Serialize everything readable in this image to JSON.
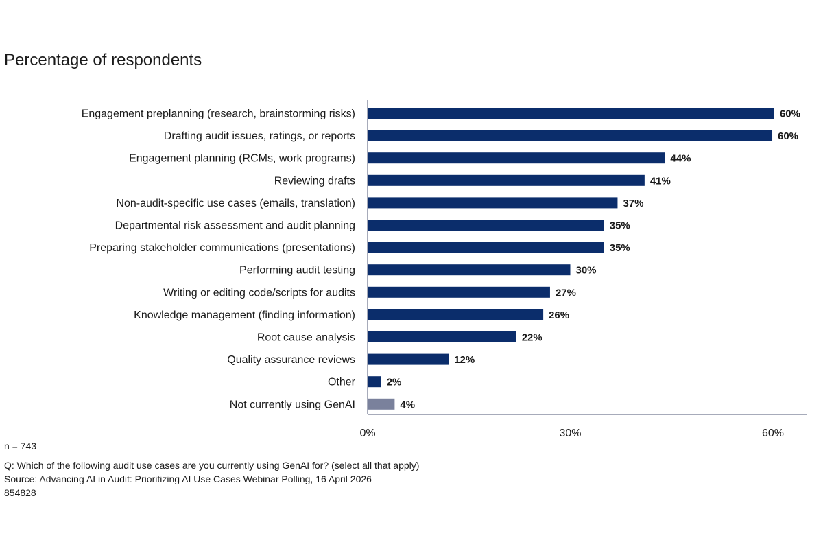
{
  "chart_data": {
    "type": "bar",
    "orientation": "horizontal",
    "title": "Percentage of respondents",
    "categories": [
      "Engagement preplanning (research, brainstorming risks)",
      "Drafting audit issues, ratings, or reports",
      "Engagement planning (RCMs, work programs)",
      "Reviewing drafts",
      "Non-audit-specific use cases (emails, translation)",
      "Departmental risk assessment and audit planning",
      "Preparing stakeholder communications (presentations)",
      "Performing audit testing",
      "Writing or editing code/scripts for audits",
      "Knowledge management (finding information)",
      "Root cause analysis",
      "Quality assurance reviews",
      "Other",
      "Not currently using GenAI"
    ],
    "values": [
      60.2,
      59.9,
      44,
      41,
      37,
      35,
      35,
      30,
      27,
      26,
      22,
      12,
      2,
      4
    ],
    "value_labels": [
      "60%",
      "60%",
      "44%",
      "41%",
      "37%",
      "35%",
      "35%",
      "30%",
      "27%",
      "26%",
      "22%",
      "12%",
      "2%",
      "4%"
    ],
    "bar_colors": [
      "#0b2d6b",
      "#0b2d6b",
      "#0b2d6b",
      "#0b2d6b",
      "#0b2d6b",
      "#0b2d6b",
      "#0b2d6b",
      "#0b2d6b",
      "#0b2d6b",
      "#0b2d6b",
      "#0b2d6b",
      "#0b2d6b",
      "#0b2d6b",
      "#7a819c"
    ],
    "xlim": [
      0,
      65
    ],
    "xticks": [
      0,
      30,
      60
    ],
    "xtick_labels": [
      "0%",
      "30%",
      "60%"
    ],
    "grid": false,
    "legend": "none"
  },
  "footer": {
    "n": "n = 743",
    "question": "Q: Which of the following audit use cases are you currently using GenAI for? (select all that apply)",
    "source": "Source: Advancing AI in Audit: Prioritizing AI Use Cases Webinar Polling, 16 April 2026",
    "id": "854828"
  },
  "colors": {
    "axis": "#8a8fa3"
  }
}
